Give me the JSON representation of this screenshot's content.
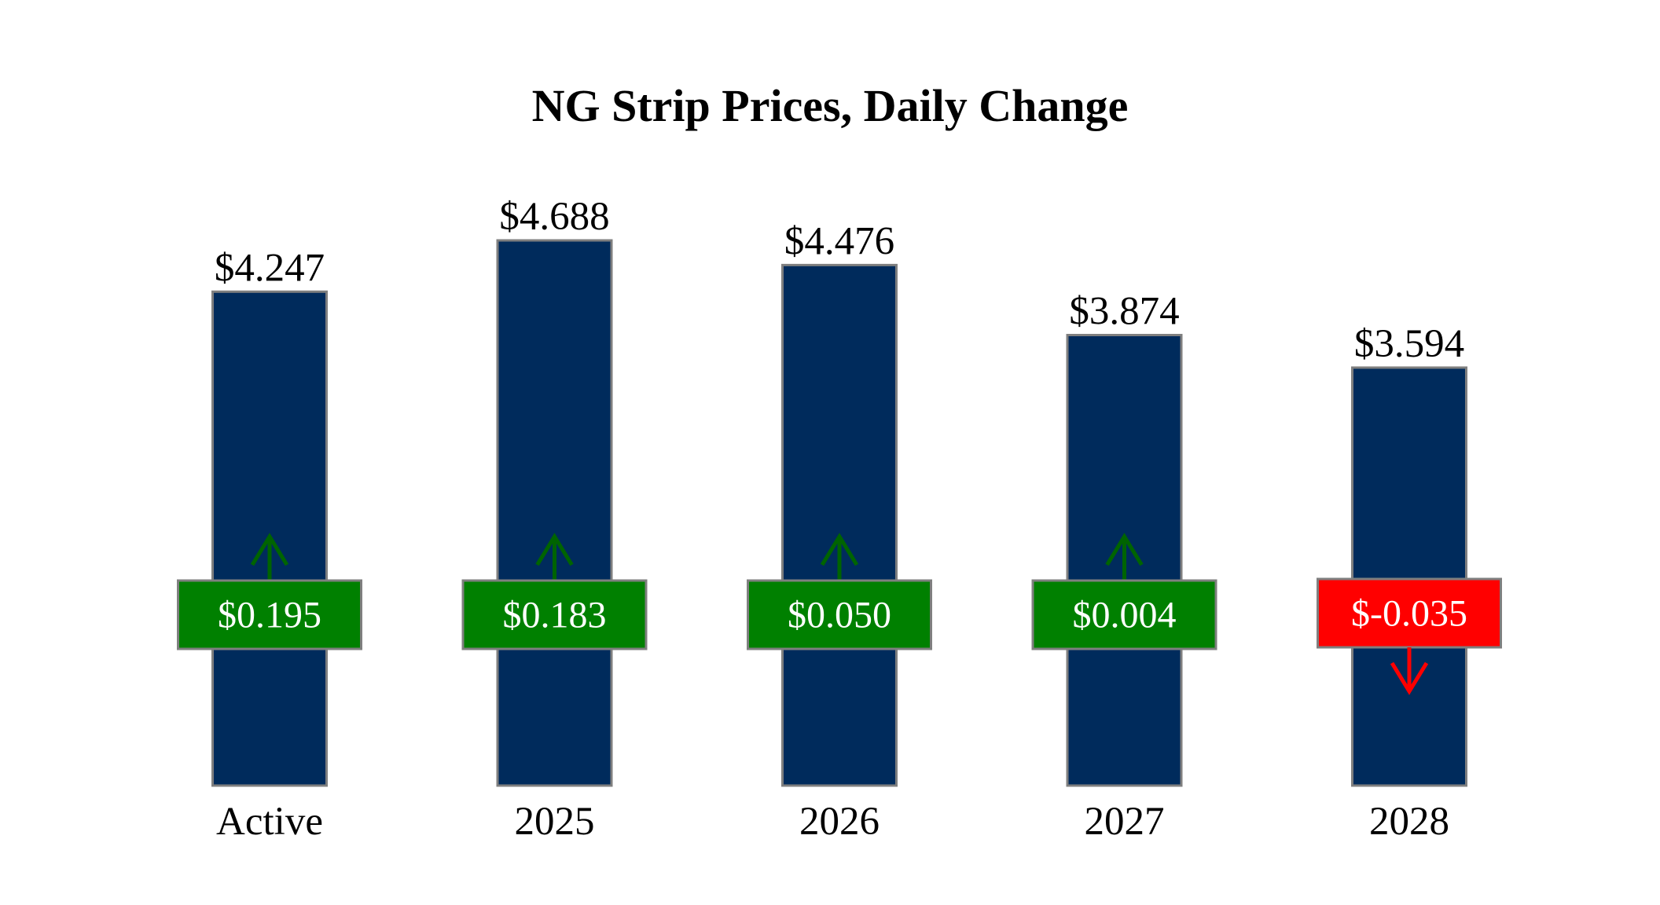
{
  "chart_data": {
    "type": "bar",
    "title": "NG Strip Prices, Daily Change",
    "xlabel": "",
    "ylabel": "",
    "categories": [
      "Active",
      "2025",
      "2026",
      "2027",
      "2028"
    ],
    "values": [
      4.247,
      4.688,
      4.476,
      3.874,
      3.594
    ],
    "value_labels": [
      "$4.247",
      "$4.688",
      "$4.476",
      "$3.874",
      "$3.594"
    ],
    "changes": [
      0.195,
      0.183,
      0.05,
      0.004,
      -0.035
    ],
    "change_labels": [
      "$0.195",
      "$0.183",
      "$0.050",
      "$0.004",
      "$-0.035"
    ],
    "ylim": [
      0,
      4.688
    ],
    "grid": false,
    "legend": "none",
    "colors": {
      "bar": "#002b5c",
      "bar_border": "#7f7f7f",
      "positive": "#008000",
      "negative": "#ff0000",
      "badge_border": "#7f7f7f",
      "arrow_up": "#006400",
      "arrow_down": "#ff0000"
    }
  }
}
